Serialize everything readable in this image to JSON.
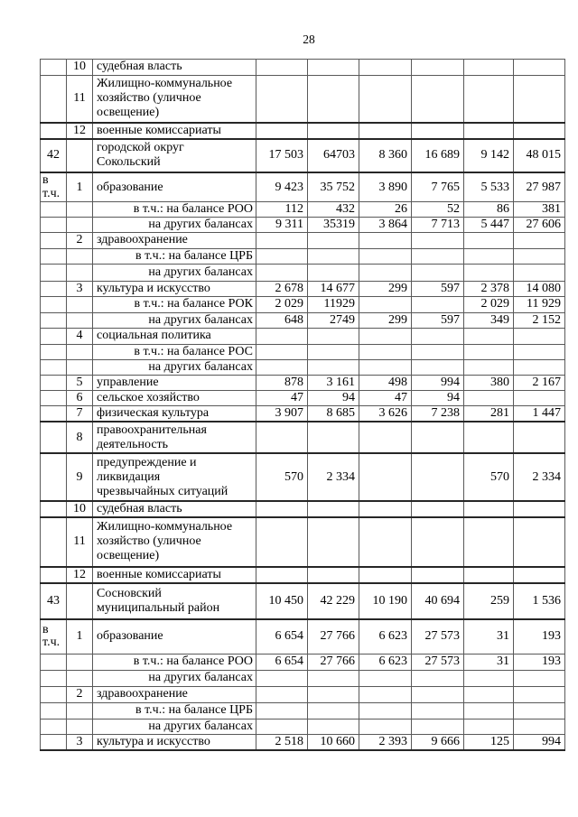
{
  "page": {
    "number": "28"
  },
  "table": {
    "rows": [
      {
        "num": "",
        "sub": "10",
        "name": "судебная власть",
        "align": "left",
        "values": [
          "",
          "",
          "",
          "",
          "",
          ""
        ]
      },
      {
        "num": "",
        "sub": "11",
        "name": "Жилищно-коммунальное\nхозяйство (уличное\nосвещение)",
        "align": "left",
        "values": [
          "",
          "",
          "",
          "",
          "",
          ""
        ]
      },
      {
        "num": "",
        "sub": "12",
        "name": "военные комиссариаты",
        "align": "left",
        "values": [
          "",
          "",
          "",
          "",
          "",
          ""
        ]
      },
      {
        "num": "42",
        "sub": "",
        "name": "городской округ\nСокольский",
        "align": "left",
        "values": [
          "17 503",
          "64703",
          "8 360",
          "16 689",
          "9 142",
          "48 015"
        ]
      },
      {
        "num": "в т.ч.",
        "sub": "1",
        "name": "образование",
        "align": "left",
        "values": [
          "9 423",
          "35 752",
          "3 890",
          "7 765",
          "5 533",
          "27 987"
        ]
      },
      {
        "num": "",
        "sub": "",
        "name": "в т.ч.: на балансе РОО",
        "align": "right",
        "values": [
          "112",
          "432",
          "26",
          "52",
          "86",
          "381"
        ]
      },
      {
        "num": "",
        "sub": "",
        "name": "на других балансах",
        "align": "right",
        "values": [
          "9 311",
          "35319",
          "3 864",
          "7 713",
          "5 447",
          "27 606"
        ]
      },
      {
        "num": "",
        "sub": "2",
        "name": "здравоохранение",
        "align": "left",
        "values": [
          "",
          "",
          "",
          "",
          "",
          ""
        ]
      },
      {
        "num": "",
        "sub": "",
        "name": "в т.ч.: на балансе ЦРБ",
        "align": "right",
        "values": [
          "",
          "",
          "",
          "",
          "",
          ""
        ]
      },
      {
        "num": "",
        "sub": "",
        "name": "на других балансах",
        "align": "right",
        "values": [
          "",
          "",
          "",
          "",
          "",
          ""
        ]
      },
      {
        "num": "",
        "sub": "3",
        "name": "культура и искусство",
        "align": "left",
        "values": [
          "2 678",
          "14 677",
          "299",
          "597",
          "2 378",
          "14 080"
        ]
      },
      {
        "num": "",
        "sub": "",
        "name": "в т.ч.: на балансе РОК",
        "align": "right",
        "values": [
          "2 029",
          "11929",
          "",
          "",
          "2 029",
          "11 929"
        ]
      },
      {
        "num": "",
        "sub": "",
        "name": "на других балансах",
        "align": "right",
        "values": [
          "648",
          "2749",
          "299",
          "597",
          "349",
          "2 152"
        ]
      },
      {
        "num": "",
        "sub": "4",
        "name": "социальная политика",
        "align": "left",
        "values": [
          "",
          "",
          "",
          "",
          "",
          ""
        ]
      },
      {
        "num": "",
        "sub": "",
        "name": "в т.ч.: на балансе РОС",
        "align": "right",
        "values": [
          "",
          "",
          "",
          "",
          "",
          ""
        ]
      },
      {
        "num": "",
        "sub": "",
        "name": "на других балансах",
        "align": "right",
        "values": [
          "",
          "",
          "",
          "",
          "",
          ""
        ]
      },
      {
        "num": "",
        "sub": "5",
        "name": "управление",
        "align": "left",
        "values": [
          "878",
          "3 161",
          "498",
          "994",
          "380",
          "2 167"
        ]
      },
      {
        "num": "",
        "sub": "6",
        "name": "сельское хозяйство",
        "align": "left",
        "values": [
          "47",
          "94",
          "47",
          "94",
          "",
          ""
        ]
      },
      {
        "num": "",
        "sub": "7",
        "name": "физическая культура",
        "align": "left",
        "values": [
          "3 907",
          "8 685",
          "3 626",
          "7 238",
          "281",
          "1 447"
        ]
      },
      {
        "num": "",
        "sub": "8",
        "name": "правоохранительная\nдеятельность",
        "align": "left",
        "values": [
          "",
          "",
          "",
          "",
          "",
          ""
        ]
      },
      {
        "num": "",
        "sub": "9",
        "name": "предупреждение и\nликвидация\nчрезвычайных ситуаций",
        "align": "left",
        "values": [
          "570",
          "2 334",
          "",
          "",
          "570",
          "2 334"
        ]
      },
      {
        "num": "",
        "sub": "10",
        "name": "судебная власть",
        "align": "left",
        "values": [
          "",
          "",
          "",
          "",
          "",
          ""
        ]
      },
      {
        "num": "",
        "sub": "11",
        "name": "Жилищно-коммунальное\nхозяйство (уличное\nосвещение)",
        "align": "left",
        "values": [
          "",
          "",
          "",
          "",
          "",
          ""
        ]
      },
      {
        "num": "",
        "sub": "12",
        "name": "военные комиссариаты",
        "align": "left",
        "values": [
          "",
          "",
          "",
          "",
          "",
          ""
        ]
      },
      {
        "num": "43",
        "sub": "",
        "name": "Сосновский\nмуниципальный район",
        "align": "left",
        "values": [
          "10 450",
          "42 229",
          "10 190",
          "40 694",
          "259",
          "1 536"
        ]
      },
      {
        "num": "в т.ч.",
        "sub": "1",
        "name": "образование",
        "align": "left",
        "values": [
          "6 654",
          "27 766",
          "6 623",
          "27 573",
          "31",
          "193"
        ]
      },
      {
        "num": "",
        "sub": "",
        "name": "в т.ч.: на балансе РОО",
        "align": "right",
        "values": [
          "6 654",
          "27 766",
          "6 623",
          "27 573",
          "31",
          "193"
        ]
      },
      {
        "num": "",
        "sub": "",
        "name": "на других балансах",
        "align": "right",
        "values": [
          "",
          "",
          "",
          "",
          "",
          ""
        ]
      },
      {
        "num": "",
        "sub": "2",
        "name": "здравоохранение",
        "align": "left",
        "values": [
          "",
          "",
          "",
          "",
          "",
          ""
        ]
      },
      {
        "num": "",
        "sub": "",
        "name": "в т.ч.: на балансе ЦРБ",
        "align": "right",
        "values": [
          "",
          "",
          "",
          "",
          "",
          ""
        ]
      },
      {
        "num": "",
        "sub": "",
        "name": "на других балансах",
        "align": "right",
        "values": [
          "",
          "",
          "",
          "",
          "",
          ""
        ]
      },
      {
        "num": "",
        "sub": "3",
        "name": "культура и искусство",
        "align": "left",
        "values": [
          "2 518",
          "10 660",
          "2 393",
          "9 666",
          "125",
          "994"
        ]
      }
    ]
  }
}
